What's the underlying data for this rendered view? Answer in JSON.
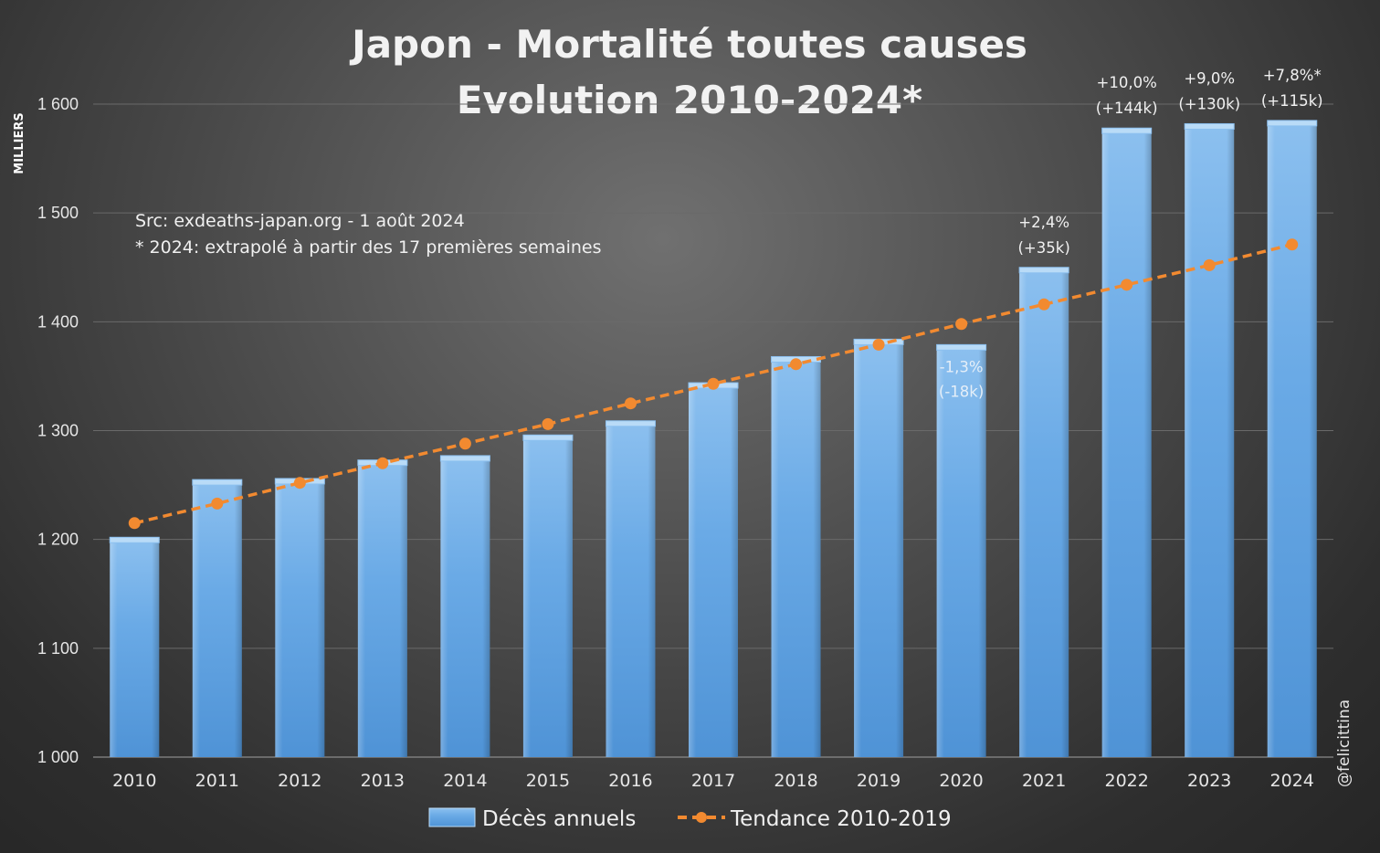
{
  "chart_data": {
    "type": "bar",
    "title": [
      "Japon - Mortalité toutes causes",
      "Evolution 2010-2024*"
    ],
    "ylabel": "MILLIERS",
    "ylim": [
      1000,
      1600
    ],
    "yticks": [
      "1 000",
      "1 100",
      "1 200",
      "1 300",
      "1 400",
      "1 500",
      "1 600"
    ],
    "ytick_values": [
      1000,
      1100,
      1200,
      1300,
      1400,
      1500,
      1600
    ],
    "grid": true,
    "categories": [
      "2010",
      "2011",
      "2012",
      "2013",
      "2014",
      "2015",
      "2016",
      "2017",
      "2018",
      "2019",
      "2020",
      "2021",
      "2022",
      "2023",
      "2024"
    ],
    "series": [
      {
        "name": "Décès annuels",
        "type": "bar",
        "color": "#5b9bd5",
        "values": [
          1202,
          1255,
          1256,
          1273,
          1277,
          1296,
          1309,
          1344,
          1368,
          1384,
          1379,
          1450,
          1578,
          1582,
          1585
        ]
      },
      {
        "name": "Tendance 2010-2019",
        "type": "line",
        "style": "dashed",
        "color": "#f28a30",
        "values": [
          1215,
          1233,
          1252,
          1270,
          1288,
          1306,
          1325,
          1343,
          1361,
          1379,
          1398,
          1416,
          1434,
          1452,
          1471
        ]
      }
    ],
    "annotations": [
      {
        "category": "2020",
        "lines": [
          "-1,3%",
          "(-18k)"
        ],
        "placement": "inside"
      },
      {
        "category": "2021",
        "lines": [
          "+2,4%",
          "(+35k)"
        ],
        "placement": "above"
      },
      {
        "category": "2022",
        "lines": [
          "+10,0%",
          "(+144k)"
        ],
        "placement": "above"
      },
      {
        "category": "2023",
        "lines": [
          "+9,0%",
          "(+130k)"
        ],
        "placement": "above"
      },
      {
        "category": "2024",
        "lines": [
          "+7,8%*",
          "(+115k)"
        ],
        "placement": "above"
      }
    ],
    "notes": [
      "Src: exdeaths-japan.org - 1 août 2024",
      "* 2024: extrapolé à partir des 17 premières semaines"
    ],
    "legend": {
      "placement": "bottom",
      "entries": [
        "Décès annuels",
        "Tendance 2010-2019"
      ]
    },
    "credit": "@felicittina"
  }
}
